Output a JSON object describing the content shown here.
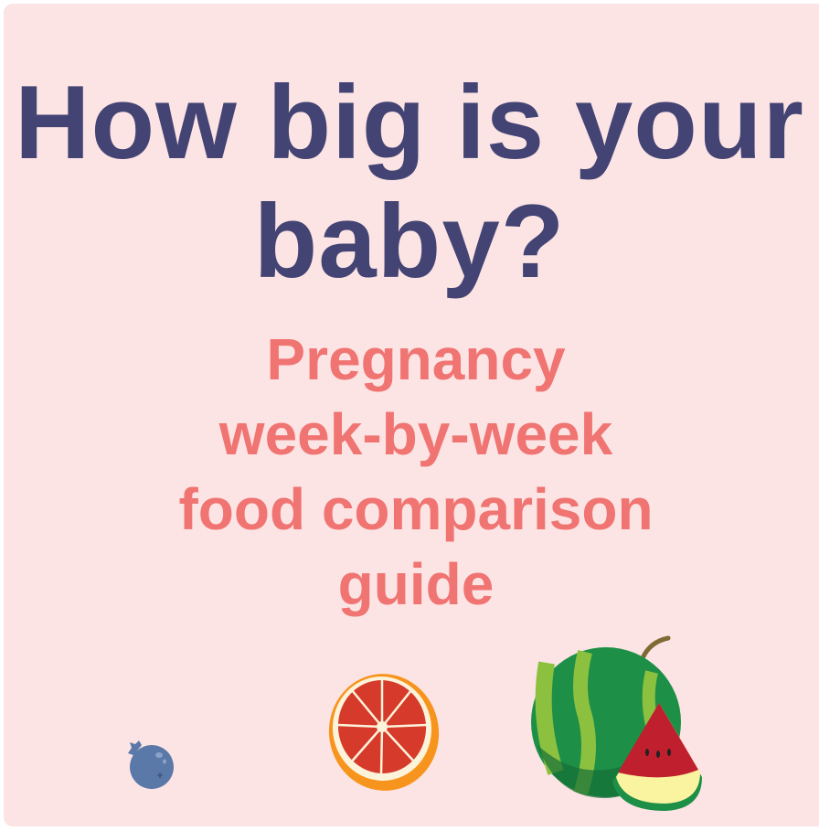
{
  "title": {
    "line1": "How big is your",
    "line2": "baby?"
  },
  "subtitle": {
    "line1": "Pregnancy",
    "line2": "week-by-week",
    "line3": "food comparison",
    "line4": "guide"
  },
  "illustrations": [
    "blueberry-icon",
    "grapefruit-icon",
    "watermelon-icon"
  ],
  "colors": {
    "background": "#fce4e4",
    "title": "#444474",
    "subtitle": "#f07472"
  }
}
